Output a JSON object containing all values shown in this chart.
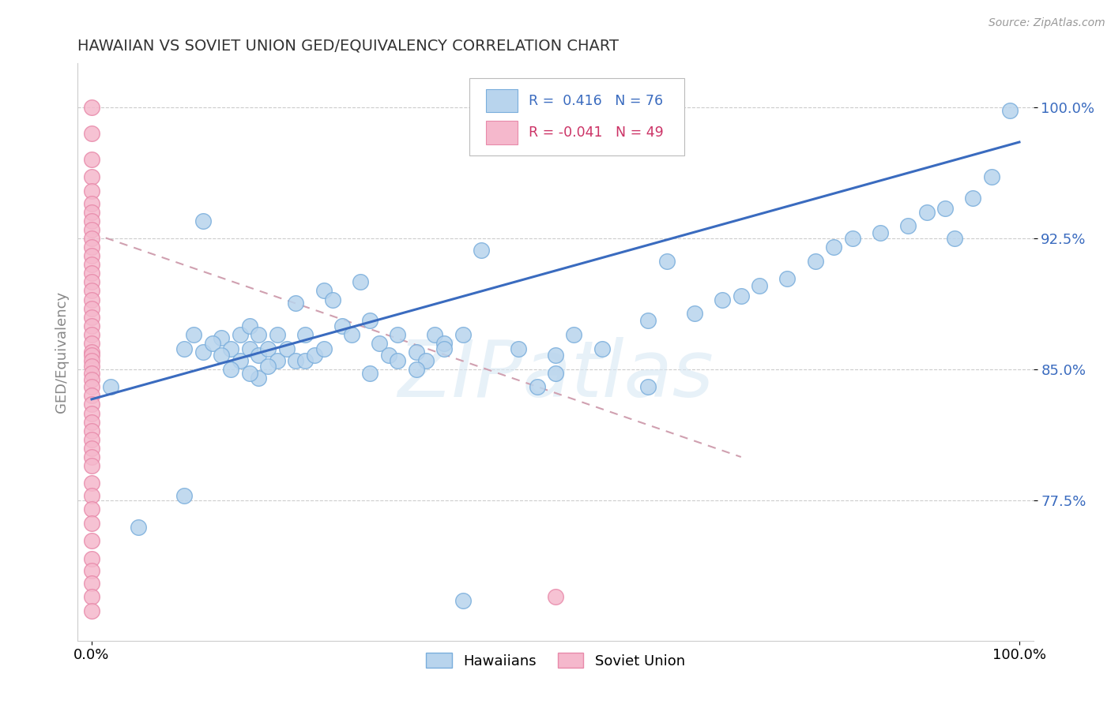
{
  "title": "HAWAIIAN VS SOVIET UNION GED/EQUIVALENCY CORRELATION CHART",
  "source": "Source: ZipAtlas.com",
  "ylabel": "GED/Equivalency",
  "xlim": [
    -0.015,
    1.015
  ],
  "ylim": [
    0.695,
    1.025
  ],
  "yticks": [
    0.775,
    0.85,
    0.925,
    1.0
  ],
  "ytick_labels": [
    "77.5%",
    "85.0%",
    "92.5%",
    "100.0%"
  ],
  "xtick_labels": [
    "0.0%",
    "100.0%"
  ],
  "xtick_vals": [
    0.0,
    1.0
  ],
  "legend_r_blue": "0.416",
  "legend_n_blue": "76",
  "legend_r_pink": "-0.041",
  "legend_n_pink": "49",
  "blue_color": "#b8d4ed",
  "blue_edge": "#7aaedc",
  "pink_color": "#f5b8cc",
  "pink_edge": "#e88aaa",
  "line_blue_color": "#3a6bbf",
  "line_pink_color": "#d0a0b0",
  "watermark_text": "ZIPatlas",
  "blue_scatter_x": [
    0.02,
    0.12,
    0.22,
    0.23,
    0.25,
    0.26,
    0.27,
    0.28,
    0.29,
    0.3,
    0.14,
    0.15,
    0.16,
    0.16,
    0.17,
    0.17,
    0.18,
    0.18,
    0.19,
    0.2,
    0.2,
    0.21,
    0.22,
    0.23,
    0.24,
    0.1,
    0.11,
    0.12,
    0.13,
    0.14,
    0.31,
    0.32,
    0.33,
    0.35,
    0.37,
    0.38,
    0.4,
    0.33,
    0.36,
    0.38,
    0.42,
    0.46,
    0.5,
    0.55,
    0.6,
    0.62,
    0.65,
    0.6,
    0.48,
    0.52,
    0.68,
    0.7,
    0.72,
    0.75,
    0.78,
    0.8,
    0.82,
    0.85,
    0.88,
    0.9,
    0.92,
    0.95,
    0.97,
    0.99,
    0.93,
    0.05,
    0.1,
    0.18,
    0.3,
    0.4,
    0.15,
    0.17,
    0.19,
    0.25,
    0.35,
    0.5
  ],
  "blue_scatter_y": [
    0.84,
    0.935,
    0.888,
    0.87,
    0.895,
    0.89,
    0.875,
    0.87,
    0.9,
    0.878,
    0.868,
    0.862,
    0.87,
    0.855,
    0.862,
    0.875,
    0.858,
    0.87,
    0.862,
    0.87,
    0.855,
    0.862,
    0.855,
    0.855,
    0.858,
    0.862,
    0.87,
    0.86,
    0.865,
    0.858,
    0.865,
    0.858,
    0.87,
    0.86,
    0.87,
    0.865,
    0.87,
    0.855,
    0.855,
    0.862,
    0.918,
    0.862,
    0.848,
    0.862,
    0.878,
    0.912,
    0.882,
    0.84,
    0.84,
    0.87,
    0.89,
    0.892,
    0.898,
    0.902,
    0.912,
    0.92,
    0.925,
    0.928,
    0.932,
    0.94,
    0.942,
    0.948,
    0.96,
    0.998,
    0.925,
    0.76,
    0.778,
    0.845,
    0.848,
    0.718,
    0.85,
    0.848,
    0.852,
    0.862,
    0.85,
    0.858
  ],
  "pink_scatter_x": [
    0.0,
    0.0,
    0.0,
    0.0,
    0.0,
    0.0,
    0.0,
    0.0,
    0.0,
    0.0,
    0.0,
    0.0,
    0.0,
    0.0,
    0.0,
    0.0,
    0.0,
    0.0,
    0.0,
    0.0,
    0.0,
    0.0,
    0.0,
    0.0,
    0.0,
    0.0,
    0.0,
    0.0,
    0.0,
    0.0,
    0.0,
    0.0,
    0.0,
    0.0,
    0.0,
    0.0,
    0.0,
    0.0,
    0.0,
    0.0,
    0.0,
    0.0,
    0.0,
    0.0,
    0.0,
    0.0,
    0.0,
    0.0,
    0.5
  ],
  "pink_scatter_y": [
    1.0,
    0.985,
    0.97,
    0.96,
    0.952,
    0.945,
    0.94,
    0.935,
    0.93,
    0.925,
    0.92,
    0.915,
    0.91,
    0.905,
    0.9,
    0.895,
    0.89,
    0.885,
    0.88,
    0.875,
    0.87,
    0.865,
    0.86,
    0.858,
    0.855,
    0.852,
    0.848,
    0.844,
    0.84,
    0.835,
    0.83,
    0.825,
    0.82,
    0.815,
    0.81,
    0.805,
    0.8,
    0.795,
    0.785,
    0.778,
    0.77,
    0.762,
    0.752,
    0.742,
    0.735,
    0.728,
    0.72,
    0.712,
    0.72
  ],
  "blue_line_x": [
    0.0,
    1.0
  ],
  "blue_line_y": [
    0.833,
    0.98
  ],
  "pink_line_x": [
    0.0,
    0.7
  ],
  "pink_line_y": [
    0.928,
    0.8
  ],
  "marker_size": 200
}
